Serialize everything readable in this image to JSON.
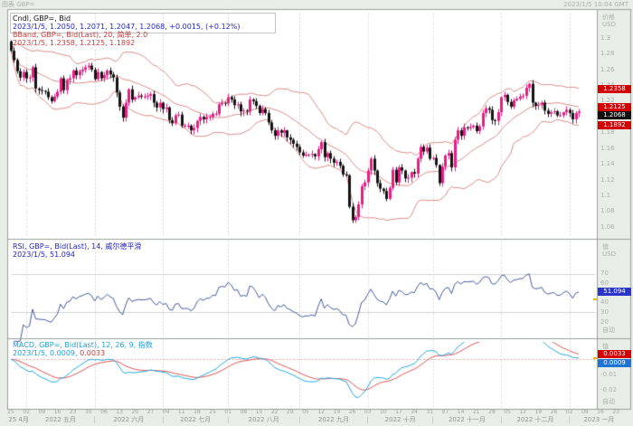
{
  "window": {
    "title_left": "图表 GBP=",
    "title_right": "2023/1/5 10:04 GMT"
  },
  "colors": {
    "background": "#e9ede8",
    "plot_bg": "#ffffff",
    "frame": "#98a098",
    "grid": "#d9ded9",
    "candle_up": "#e61e82",
    "candle_down": "#141414",
    "bollinger": "#dc8c8c",
    "rsi_line": "#4a5a9c",
    "macd_line": "#22a8e0",
    "signal_line": "#e05555",
    "badge_red": "#d40000",
    "badge_black": "#101010",
    "badge_blue_rsi": "#2a35cc",
    "badge_blue_macd": "#1b74d6"
  },
  "price_pane": {
    "legend": [
      {
        "segments": [
          {
            "text": "Cndl, GBP=, Bid",
            "color": "#111111"
          }
        ]
      },
      {
        "segments": [
          {
            "text": "2023/1/5, 1.2050, 1.2071, 1.2047, 1.2068, +0.0015, (+0.12%)",
            "color": "#2424cc"
          }
        ]
      },
      {
        "segments": [
          {
            "text": "BBand, GBP=, Bid(Last), 20, 简单, 2.0",
            "color": "#c83c3c"
          }
        ]
      },
      {
        "segments": [
          {
            "text": "2023/1/5, 1.2358, 1.2125, 1.1892",
            "color": "#c83c3c"
          }
        ]
      }
    ],
    "axis_header": [
      "价格",
      "USD"
    ],
    "badges": [
      {
        "text": "1.2358",
        "bg": "#d40000"
      },
      {
        "text": "1.2125",
        "bg": "#d40000"
      },
      {
        "text": "1.2068",
        "bg": "#101010"
      },
      {
        "text": "1.1892",
        "bg": "#d40000"
      }
    ]
  },
  "rsi_pane": {
    "legend": [
      {
        "segments": [
          {
            "text": "RSI, GBP=, Bid(Last), 14, 威尔德平滑",
            "color": "#2424cc"
          }
        ]
      },
      {
        "segments": [
          {
            "text": "2023/1/5, 51.094",
            "color": "#2424cc"
          }
        ]
      }
    ],
    "axis_header": [
      "值",
      "USD"
    ],
    "badge": {
      "text": "51.094",
      "bg": "#2a35cc"
    },
    "auto_label": "自动"
  },
  "macd_pane": {
    "legend": [
      {
        "segments": [
          {
            "text": "MACD, GBP=, Bid(Last), 12, 26, 9, 指数",
            "color": "#1fa0dc"
          }
        ]
      },
      {
        "segments": [
          {
            "text": "2023/1/5, 0.0009, ",
            "color": "#1fa0dc"
          },
          {
            "text": "0.0033",
            "color": "#c83c3c"
          }
        ]
      }
    ],
    "axis_header": [
      "值"
    ],
    "badges": [
      {
        "text": "0.0033",
        "bg": "#d40000"
      },
      {
        "text": "0.0009",
        "bg": "#1b74d6"
      }
    ],
    "auto_label": "自动"
  },
  "x_axis": {
    "start_date": "2022-04-25",
    "day_labels": [
      "25",
      "02",
      "09",
      "16",
      "23",
      "30",
      "06",
      "13",
      "20",
      "27",
      "04",
      "11",
      "18",
      "25",
      "01",
      "08",
      "15",
      "22",
      "29",
      "05",
      "12",
      "19",
      "26",
      "03",
      "10",
      "17",
      "24",
      "31",
      "07",
      "14",
      "21",
      "28",
      "05",
      "12",
      "19",
      "26",
      "02",
      "09",
      "16",
      "23"
    ],
    "month_labels": [
      "25 4月",
      "2022 五月",
      "2022 六月",
      "2022 七月",
      "2022 八月",
      "2022 九月",
      "2022 十月",
      "2022 十一月",
      "2022 十二月",
      "2023 一月"
    ],
    "separator": "|"
  },
  "chart_data": [
    {
      "type": "candlestick",
      "title": "Cndl, GBP=, Bid",
      "ylabel": "价格 USD",
      "ylim": [
        1.05,
        1.33
      ],
      "yticks": [
        "1.3",
        "1.28",
        "1.26",
        "1.24",
        "1.22",
        "1.2",
        "1.18",
        "1.16",
        "1.14",
        "1.12",
        "1.1",
        "1.08",
        "1.06"
      ],
      "frequency": "daily-weekdays",
      "closes": [
        1.284,
        1.272,
        1.258,
        1.25,
        1.257,
        1.249,
        1.25,
        1.263,
        1.236,
        1.234,
        1.233,
        1.232,
        1.225,
        1.22,
        1.226,
        1.232,
        1.249,
        1.234,
        1.247,
        1.249,
        1.259,
        1.253,
        1.258,
        1.26,
        1.263,
        1.265,
        1.26,
        1.248,
        1.257,
        1.249,
        1.253,
        1.259,
        1.254,
        1.25,
        1.231,
        1.213,
        1.199,
        1.218,
        1.235,
        1.222,
        1.225,
        1.227,
        1.226,
        1.226,
        1.227,
        1.229,
        1.218,
        1.212,
        1.218,
        1.21,
        1.212,
        1.196,
        1.192,
        1.202,
        1.203,
        1.189,
        1.189,
        1.189,
        1.183,
        1.186,
        1.195,
        1.2,
        1.197,
        1.2,
        1.2,
        1.204,
        1.204,
        1.216,
        1.218,
        1.217,
        1.225,
        1.222,
        1.215,
        1.216,
        1.207,
        1.208,
        1.207,
        1.222,
        1.22,
        1.214,
        1.205,
        1.21,
        1.205,
        1.193,
        1.183,
        1.176,
        1.183,
        1.18,
        1.183,
        1.174,
        1.171,
        1.166,
        1.162,
        1.155,
        1.151,
        1.152,
        1.152,
        1.153,
        1.15,
        1.159,
        1.168,
        1.149,
        1.154,
        1.147,
        1.142,
        1.143,
        1.138,
        1.127,
        1.126,
        1.086,
        1.069,
        1.073,
        1.089,
        1.112,
        1.117,
        1.132,
        1.147,
        1.132,
        1.116,
        1.109,
        1.106,
        1.096,
        1.11,
        1.133,
        1.117,
        1.136,
        1.132,
        1.122,
        1.123,
        1.13,
        1.128,
        1.147,
        1.162,
        1.156,
        1.161,
        1.147,
        1.148,
        1.139,
        1.116,
        1.137,
        1.151,
        1.154,
        1.136,
        1.171,
        1.183,
        1.176,
        1.187,
        1.186,
        1.187,
        1.189,
        1.182,
        1.188,
        1.205,
        1.211,
        1.209,
        1.196,
        1.195,
        1.206,
        1.225,
        1.228,
        1.219,
        1.213,
        1.221,
        1.223,
        1.226,
        1.227,
        1.237,
        1.242,
        1.218,
        1.214,
        1.215,
        1.218,
        1.208,
        1.204,
        1.206,
        1.207,
        1.202,
        1.202,
        1.206,
        1.209,
        1.205,
        1.197,
        1.205,
        1.2068
      ],
      "last_candle": {
        "date": "2023/1/5",
        "open": 1.205,
        "high": 1.2071,
        "low": 1.2047,
        "close": 1.2068,
        "change": "+0.0015",
        "change_pct": "(+0.12%)"
      },
      "indicators": {
        "bollinger": {
          "period": 20,
          "ma_type": "简单",
          "width": 2.0,
          "last_upper": 1.2358,
          "last_middle": 1.2125,
          "last_lower": 1.1892
        }
      }
    },
    {
      "type": "line",
      "title": "RSI, GBP=, Bid(Last), 14, 威尔德平滑",
      "ylim": [
        5,
        80
      ],
      "yticks": [
        "70",
        "60",
        "50",
        "40",
        "30",
        "20"
      ],
      "ref_lines": [
        70,
        30
      ],
      "last": 51.094,
      "derived_from": "RSI(14, Wilder smoothing) of chart_data[0].closes"
    },
    {
      "type": "line",
      "title": "MACD, GBP=, Bid(Last), 12, 26, 9, 指数",
      "ylim": [
        -0.03,
        0.009
      ],
      "yticks": [
        "-0.01",
        "-0.02"
      ],
      "zero_line": 0,
      "last_macd": 0.0009,
      "last_signal": 0.0033,
      "derived_from": "MACD(12,26,9, exponential) of chart_data[0].closes"
    }
  ]
}
